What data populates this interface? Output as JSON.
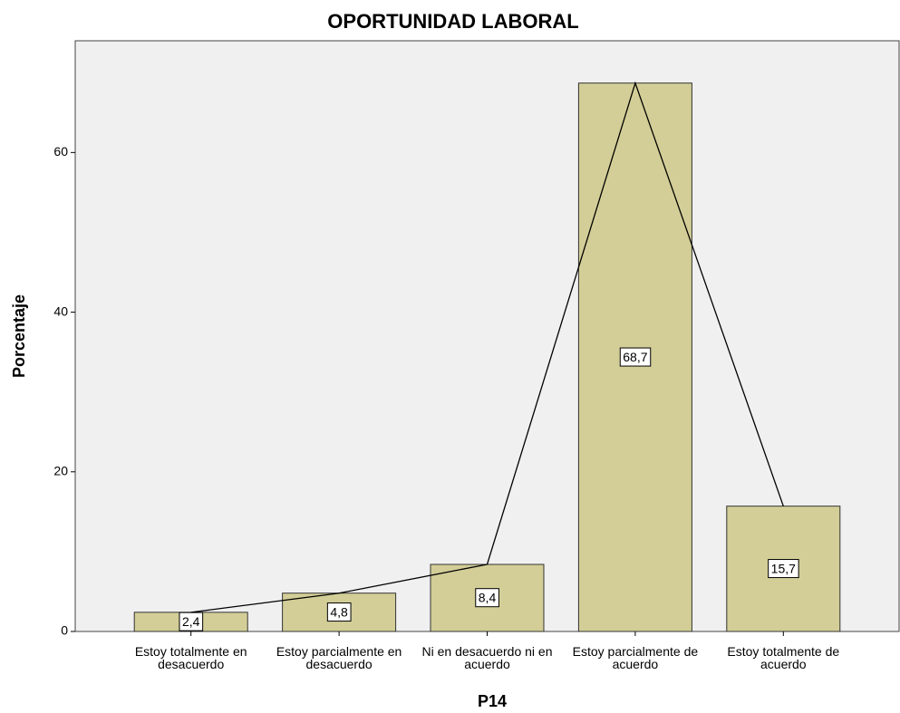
{
  "chart_data": {
    "type": "bar",
    "title": "OPORTUNIDAD LABORAL",
    "x_label": "P14",
    "y_label": "Porcentaje",
    "categories": [
      "Estoy totalmente en desacuerdo",
      "Estoy parcialmente en desacuerdo",
      "Ni en desacuerdo ni en acuerdo",
      "Estoy parcialmente de acuerdo",
      "Estoy totalmente de acuerdo"
    ],
    "values": [
      2.4,
      4.8,
      8.4,
      68.7,
      15.7
    ],
    "value_labels": [
      "2,4",
      "4,8",
      "8,4",
      "68,7",
      "15,7"
    ],
    "color": "#d3ce97",
    "line_color": "#000000",
    "line": true,
    "ylim": [
      0,
      74
    ],
    "yticks": [
      0,
      20,
      40,
      60
    ],
    "grid": false
  }
}
